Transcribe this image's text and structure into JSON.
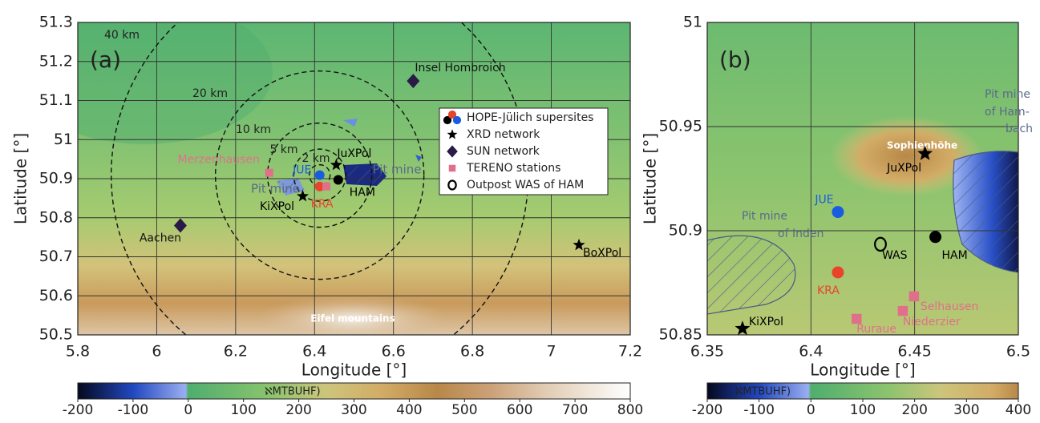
{
  "chart_data": [
    {
      "type": "map",
      "panel_label": "(a)",
      "x_label": "Longitude [°]",
      "y_label": "Latitude [°]",
      "xlim": [
        5.8,
        7.2
      ],
      "ylim": [
        50.5,
        51.3
      ],
      "xticks": [
        5.8,
        6,
        6.2,
        6.4,
        6.6,
        6.8,
        7,
        7.2
      ],
      "yticks": [
        50.5,
        50.6,
        50.7,
        50.8,
        50.9,
        51,
        51.1,
        51.2,
        51.3
      ],
      "grid": true,
      "range_rings": [
        {
          "value": 40,
          "label": "40 km"
        },
        {
          "value": 20,
          "label": "20 km"
        },
        {
          "value": 10,
          "label": "10 km"
        },
        {
          "value": 5,
          "label": "5 km"
        },
        {
          "value": 2,
          "label": "2 km"
        }
      ],
      "points": [
        {
          "label": "Insel Hombroich",
          "lon": 6.65,
          "lat": 51.15,
          "marker": "diamond",
          "color": "#2a1a48"
        },
        {
          "label": "Aachen",
          "lon": 6.06,
          "lat": 50.78,
          "marker": "diamond",
          "color": "#2a1a48"
        },
        {
          "label": "BoXPol",
          "lon": 7.07,
          "lat": 50.73,
          "marker": "star",
          "color": "#000000"
        },
        {
          "label": "JuXPol",
          "lon": 6.455,
          "lat": 50.935,
          "marker": "star",
          "color": "#000000"
        },
        {
          "label": "KiXPol",
          "lon": 6.37,
          "lat": 50.855,
          "marker": "star",
          "color": "#000000"
        },
        {
          "label": "Merzenhausen",
          "lon": 6.285,
          "lat": 50.915,
          "marker": "square",
          "color": "#e0708a"
        },
        {
          "label": "JUE",
          "lon": 6.413,
          "lat": 50.909,
          "marker": "circle",
          "color": "#1a5ce0"
        },
        {
          "label": "KRA",
          "lon": 6.413,
          "lat": 50.88,
          "marker": "circle",
          "color": "#e8442a"
        },
        {
          "label": "HAM",
          "lon": 6.46,
          "lat": 50.897,
          "marker": "circle",
          "color": "#000000"
        },
        {
          "label": null,
          "lon": 6.43,
          "lat": 50.88,
          "marker": "square",
          "color": "#e0708a"
        }
      ],
      "annotations": [
        "Pit mine",
        "Pit mine",
        "Eifel mountains"
      ],
      "legend": [
        {
          "label": "HOPE-Jülich supersites",
          "marker": "circle",
          "colors": [
            "#000000",
            "#e8442a",
            "#1a5ce0"
          ]
        },
        {
          "label": "XRD network",
          "marker": "star",
          "colors": [
            "#000000"
          ]
        },
        {
          "label": "SUN network",
          "marker": "diamond",
          "colors": [
            "#2a1a48"
          ]
        },
        {
          "label": "TERENO stations",
          "marker": "square",
          "colors": [
            "#e0708a"
          ]
        },
        {
          "label": "Outpost WAS of HAM",
          "marker": "ring",
          "colors": [
            "#000000"
          ]
        }
      ],
      "colorbar": {
        "label": "ℵMTBUHF)",
        "lim": [
          -200,
          800
        ],
        "ticks": [
          -200,
          -100,
          0,
          100,
          200,
          300,
          400,
          500,
          600,
          700,
          800
        ]
      }
    },
    {
      "type": "map",
      "panel_label": "(b)",
      "x_label": "Longitude [°]",
      "y_label": "Latitude [°]",
      "xlim": [
        6.35,
        6.5
      ],
      "ylim": [
        50.85,
        51
      ],
      "xticks": [
        6.35,
        6.4,
        6.45,
        6.5
      ],
      "yticks": [
        50.85,
        50.9,
        50.95,
        51
      ],
      "grid": true,
      "points": [
        {
          "label": "JuXPol",
          "lon": 6.455,
          "lat": 50.937,
          "marker": "star",
          "color": "#000000"
        },
        {
          "label": "KiXPol",
          "lon": 6.367,
          "lat": 50.853,
          "marker": "star",
          "color": "#000000"
        },
        {
          "label": "JUE",
          "lon": 6.413,
          "lat": 50.909,
          "marker": "circle",
          "color": "#1a5ce0"
        },
        {
          "label": "KRA",
          "lon": 6.413,
          "lat": 50.88,
          "marker": "circle",
          "color": "#e8442a"
        },
        {
          "label": "HAM",
          "lon": 6.46,
          "lat": 50.897,
          "marker": "circle",
          "color": "#000000"
        },
        {
          "label": "WAS",
          "lon": 6.4335,
          "lat": 50.8935,
          "marker": "ring",
          "color": "#000000"
        },
        {
          "label": "Selhausen",
          "lon": 6.4497,
          "lat": 50.8685,
          "marker": "square",
          "color": "#e0708a"
        },
        {
          "label": "Niederzier",
          "lon": 6.4443,
          "lat": 50.8615,
          "marker": "square",
          "color": "#e0708a"
        },
        {
          "label": "Ruraue",
          "lon": 6.422,
          "lat": 50.8577,
          "marker": "square",
          "color": "#e0708a"
        }
      ],
      "annotations": [
        "Sophienhöhe",
        "Pit mine",
        "of Inden",
        "Pit mine",
        "of Ham-",
        "bach"
      ],
      "colorbar": {
        "label": "ℵMTBUHF)",
        "lim": [
          -200,
          400
        ],
        "ticks": [
          -200,
          -100,
          0,
          100,
          200,
          300,
          400
        ]
      }
    }
  ]
}
